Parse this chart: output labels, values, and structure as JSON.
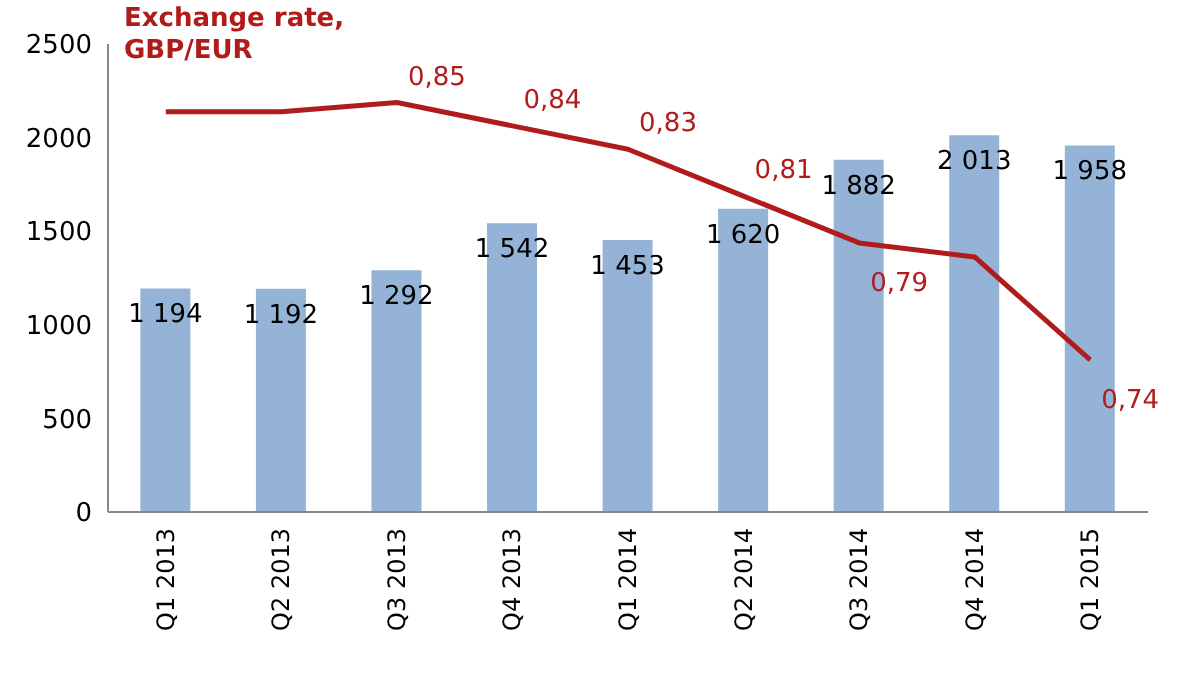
{
  "chart_data": {
    "type": "bar",
    "categories": [
      "Q1 2013",
      "Q2 2013",
      "Q3 2013",
      "Q4 2013",
      "Q1 2014",
      "Q2 2014",
      "Q3 2014",
      "Q4 2014",
      "Q1 2015"
    ],
    "series": [
      {
        "color": "#95b3d7",
        "values": [
          1194,
          1192,
          1292,
          1542,
          1453,
          1620,
          1882,
          2013,
          1958
        ],
        "value_labels": [
          "1 194",
          "1 192",
          "1 292",
          "1 542",
          "1 453",
          "1 620",
          "1 882",
          "2 013",
          "1 958"
        ]
      },
      {
        "type": "line",
        "name": "Exchange rate, GBP/EUR",
        "axis": "y2",
        "color": "#b01c1c",
        "values": [
          0.846,
          0.846,
          0.85,
          0.84,
          0.83,
          0.81,
          0.79,
          0.784,
          0.74
        ],
        "value_labels": [
          null,
          null,
          "0,85",
          "0,84",
          "0,83",
          "0,81",
          "0,79",
          null,
          "0,74"
        ]
      }
    ],
    "ylim": [
      0,
      2500
    ],
    "yticks": [
      0,
      500,
      1000,
      1500,
      2000,
      2500
    ],
    "y2lim": [
      0.675,
      0.875
    ],
    "tick_labels": "xy",
    "grid": false,
    "legend": false,
    "marker": "none",
    "line_style": "solid"
  }
}
